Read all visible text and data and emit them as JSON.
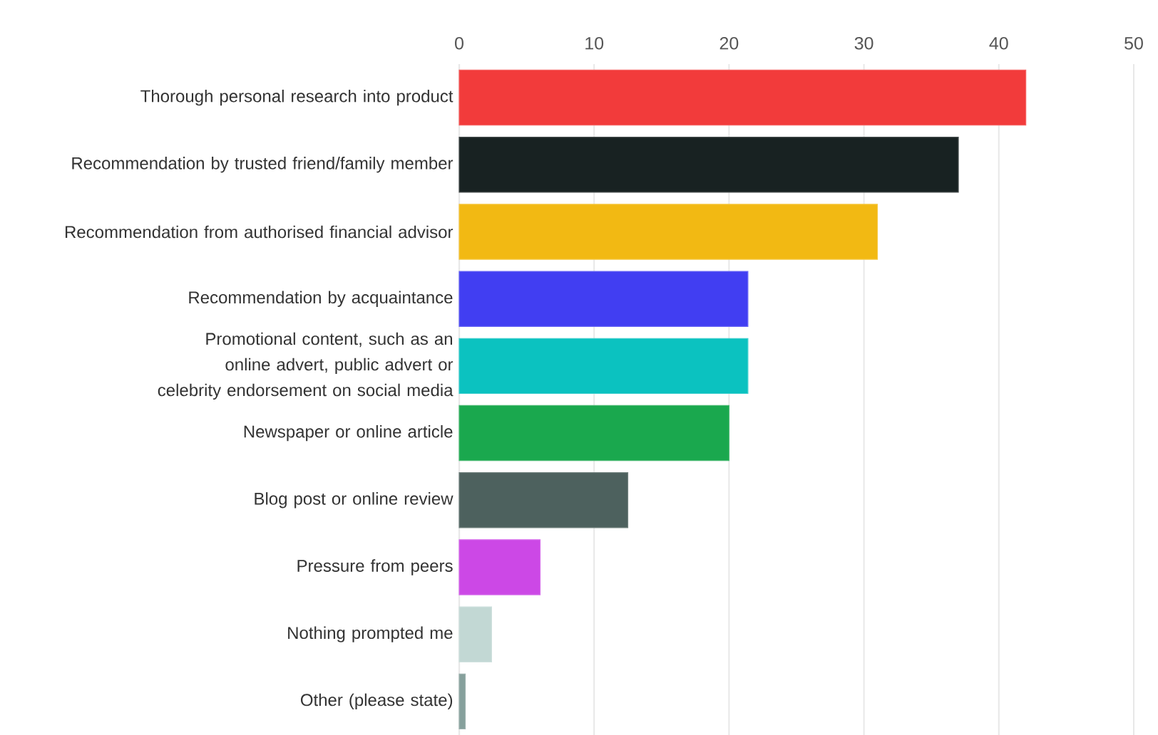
{
  "chart_data": {
    "type": "bar",
    "orientation": "horizontal",
    "categories": [
      "Thorough personal research into product",
      "Recommendation by trusted friend/family member",
      "Recommendation from authorised financial advisor",
      "Recommendation by acquaintance",
      "Promotional content, such as an online advert, public advert or celebrity endorsement on social media",
      "Newspaper or online article",
      "Blog post or online review",
      "Pressure from peers",
      "Nothing prompted me",
      "Other (please state)"
    ],
    "values": [
      42,
      37,
      31,
      21.4,
      21.4,
      20,
      12.5,
      6,
      2.4,
      0.45
    ],
    "colors": [
      "#f23b3b",
      "#182222",
      "#f2b913",
      "#413ef2",
      "#0bc2c0",
      "#1aa84e",
      "#4d615e",
      "#cc48e6",
      "#c2d8d4",
      "#86a09c"
    ],
    "xlim": [
      0,
      50
    ],
    "xticks": [
      0,
      10,
      20,
      30,
      40,
      50
    ],
    "grid": "x"
  }
}
